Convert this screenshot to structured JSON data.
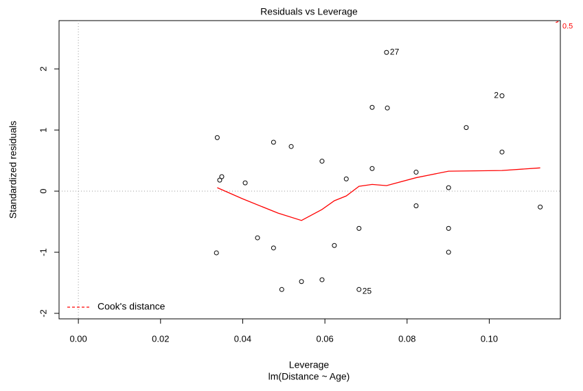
{
  "chart_data": {
    "type": "scatter",
    "title": "Residuals vs Leverage",
    "x_label": "Leverage",
    "subtitle": "lm(Distance ~ Age)",
    "y_label": "Standardized residuals",
    "xlim": [
      -0.0047,
      0.1173
    ],
    "ylim": [
      -2.09,
      2.79
    ],
    "xticks": [
      {
        "value": 0,
        "label": "0.00"
      },
      0.02,
      0.04,
      0.06,
      0.08,
      {
        "value": 0.1,
        "label": "0.10"
      }
    ],
    "yticks": [
      -2,
      -1,
      0,
      1,
      2
    ],
    "hlines": [
      0
    ],
    "vlines": [
      0
    ],
    "series": [
      {
        "kind": "points",
        "color": "#000000",
        "x": [
          0.0338,
          0.0336,
          0.0344,
          0.0349,
          0.0406,
          0.0436,
          0.0475,
          0.0475,
          0.0495,
          0.0518,
          0.0543,
          0.0593,
          0.0593,
          0.0623,
          0.0652,
          0.0683,
          0.0683,
          0.0715,
          0.0715,
          0.075,
          0.0752,
          0.0822,
          0.0822,
          0.0901,
          0.0901,
          0.0901,
          0.0944,
          0.1031,
          0.1031,
          0.1124
        ],
        "values": [
          0.876,
          -1.01,
          0.18,
          0.236,
          0.135,
          -0.764,
          0.8,
          -0.93,
          -1.61,
          0.73,
          -1.48,
          0.49,
          -1.45,
          -0.89,
          0.2,
          -0.61,
          -1.61,
          0.37,
          1.37,
          2.27,
          1.36,
          0.31,
          -0.24,
          0.056,
          -0.61,
          -1.0,
          1.04,
          1.56,
          0.64,
          -0.26
        ],
        "point_labels": [
          null,
          null,
          null,
          null,
          null,
          null,
          null,
          null,
          null,
          null,
          null,
          null,
          null,
          null,
          null,
          null,
          "25",
          null,
          null,
          "27",
          null,
          null,
          null,
          null,
          null,
          null,
          null,
          "2",
          null,
          null
        ]
      },
      {
        "kind": "line",
        "color": "#ff0000",
        "x": [
          0.0338,
          0.0399,
          0.0486,
          0.0543,
          0.0593,
          0.0623,
          0.0652,
          0.0683,
          0.0715,
          0.075,
          0.0822,
          0.0901,
          0.1031,
          0.1124
        ],
        "values": [
          0.056,
          -0.124,
          -0.36,
          -0.48,
          -0.3,
          -0.157,
          -0.079,
          0.079,
          0.11,
          0.09,
          0.22,
          0.326,
          0.337,
          0.38
        ]
      },
      {
        "kind": "line",
        "name": "Cook's distance",
        "color": "#ff0000",
        "dashed": true,
        "x": [
          0.1162,
          0.1173
        ],
        "values": [
          2.76,
          2.785
        ]
      }
    ],
    "annotations": [
      {
        "text": "0.5",
        "x": 0.1173,
        "y": 2.76
      }
    ],
    "legend": "bottom-left"
  }
}
